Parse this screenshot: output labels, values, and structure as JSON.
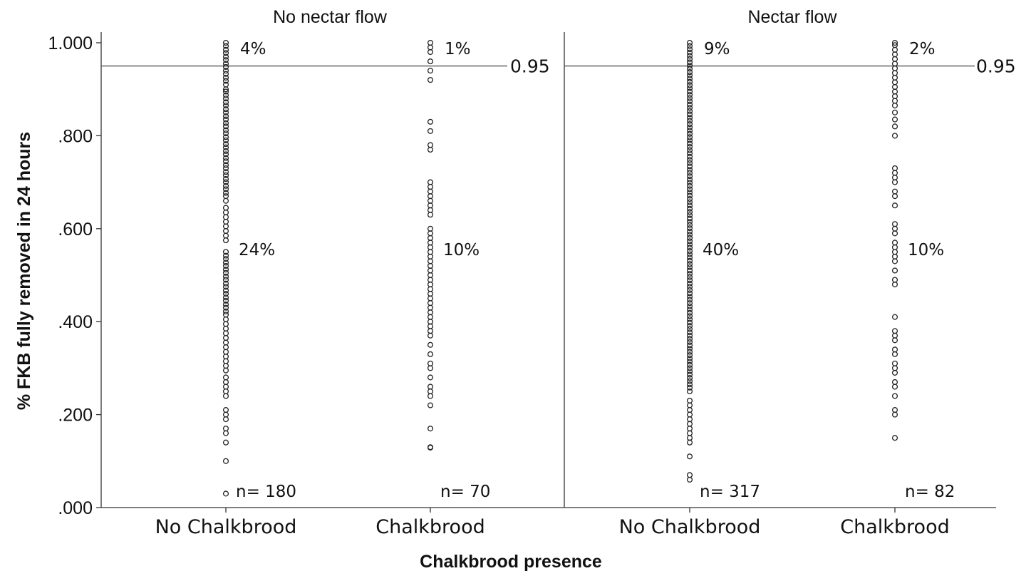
{
  "chart_data": {
    "type": "scatter",
    "ylabel": "% FKB fully removed in 24 hours",
    "xlabel": "Chalkbrood presence",
    "ylim": [
      0,
      1
    ],
    "y_ticks": [
      ".000",
      ".200",
      ".400",
      ".600",
      ".800",
      "1.000"
    ],
    "y_tick_values": [
      0,
      0.2,
      0.4,
      0.6,
      0.8,
      1.0
    ],
    "categories": [
      "No Chalkbrood",
      "Chalkbrood"
    ],
    "reference_line": {
      "value": 0.95,
      "label": "0.95"
    },
    "grid": false,
    "panels": [
      {
        "title": "No nectar flow",
        "groups": [
          {
            "category": "No Chalkbrood",
            "n_label": "n= 180",
            "pct_above": "4%",
            "pct_below": "24%",
            "values": [
              1.0,
              0.993,
              0.985,
              0.978,
              0.97,
              0.963,
              0.955,
              0.948,
              0.94,
              0.933,
              0.925,
              0.918,
              0.91,
              0.9,
              0.895,
              0.887,
              0.88,
              0.872,
              0.865,
              0.857,
              0.85,
              0.842,
              0.835,
              0.827,
              0.82,
              0.812,
              0.805,
              0.797,
              0.79,
              0.782,
              0.775,
              0.767,
              0.76,
              0.752,
              0.745,
              0.737,
              0.73,
              0.722,
              0.715,
              0.707,
              0.7,
              0.692,
              0.685,
              0.677,
              0.67,
              0.66,
              0.645,
              0.635,
              0.625,
              0.615,
              0.605,
              0.595,
              0.585,
              0.575,
              0.55,
              0.542,
              0.535,
              0.527,
              0.52,
              0.512,
              0.505,
              0.497,
              0.49,
              0.482,
              0.475,
              0.467,
              0.46,
              0.452,
              0.445,
              0.437,
              0.43,
              0.422,
              0.415,
              0.405,
              0.395,
              0.385,
              0.375,
              0.365,
              0.355,
              0.345,
              0.335,
              0.325,
              0.315,
              0.305,
              0.295,
              0.28,
              0.27,
              0.26,
              0.25,
              0.24,
              0.21,
              0.2,
              0.19,
              0.17,
              0.16,
              0.14,
              0.1,
              0.03
            ]
          },
          {
            "category": "Chalkbrood",
            "n_label": "n= 70",
            "pct_above": "1%",
            "pct_below": "10%",
            "values": [
              1.0,
              0.99,
              0.98,
              0.96,
              0.94,
              0.92,
              0.83,
              0.81,
              0.78,
              0.77,
              0.7,
              0.69,
              0.68,
              0.67,
              0.66,
              0.65,
              0.64,
              0.63,
              0.6,
              0.59,
              0.58,
              0.57,
              0.56,
              0.55,
              0.54,
              0.53,
              0.52,
              0.51,
              0.5,
              0.49,
              0.48,
              0.47,
              0.46,
              0.45,
              0.44,
              0.43,
              0.42,
              0.41,
              0.4,
              0.39,
              0.38,
              0.37,
              0.35,
              0.33,
              0.31,
              0.3,
              0.28,
              0.26,
              0.25,
              0.24,
              0.22,
              0.17,
              0.13,
              0.129
            ]
          }
        ]
      },
      {
        "title": "Nectar flow",
        "groups": [
          {
            "category": "No Chalkbrood",
            "n_label": "n= 317",
            "pct_above": "9%",
            "pct_below": "40%",
            "values": [
              1.0,
              0.993,
              0.986,
              0.979,
              0.972,
              0.965,
              0.958,
              0.951,
              0.944,
              0.937,
              0.93,
              0.923,
              0.916,
              0.909,
              0.902,
              0.895,
              0.888,
              0.881,
              0.874,
              0.867,
              0.86,
              0.853,
              0.846,
              0.839,
              0.832,
              0.825,
              0.818,
              0.811,
              0.804,
              0.797,
              0.79,
              0.783,
              0.776,
              0.769,
              0.762,
              0.755,
              0.748,
              0.741,
              0.734,
              0.727,
              0.72,
              0.713,
              0.706,
              0.699,
              0.692,
              0.685,
              0.678,
              0.671,
              0.664,
              0.657,
              0.65,
              0.643,
              0.636,
              0.629,
              0.622,
              0.615,
              0.608,
              0.601,
              0.594,
              0.587,
              0.58,
              0.573,
              0.566,
              0.559,
              0.552,
              0.545,
              0.538,
              0.531,
              0.524,
              0.517,
              0.51,
              0.503,
              0.496,
              0.489,
              0.482,
              0.475,
              0.468,
              0.461,
              0.454,
              0.447,
              0.44,
              0.433,
              0.426,
              0.419,
              0.412,
              0.405,
              0.398,
              0.391,
              0.384,
              0.377,
              0.37,
              0.363,
              0.356,
              0.349,
              0.342,
              0.335,
              0.328,
              0.321,
              0.314,
              0.307,
              0.3,
              0.293,
              0.286,
              0.279,
              0.272,
              0.265,
              0.258,
              0.25,
              0.23,
              0.22,
              0.21,
              0.2,
              0.19,
              0.18,
              0.17,
              0.16,
              0.15,
              0.14,
              0.11,
              0.07,
              0.06
            ]
          },
          {
            "category": "Chalkbrood",
            "n_label": "n= 82",
            "pct_above": "2%",
            "pct_below": "10%",
            "values": [
              1.0,
              0.995,
              0.985,
              0.975,
              0.965,
              0.955,
              0.945,
              0.935,
              0.925,
              0.915,
              0.905,
              0.895,
              0.885,
              0.875,
              0.865,
              0.85,
              0.835,
              0.82,
              0.8,
              0.73,
              0.72,
              0.71,
              0.7,
              0.68,
              0.67,
              0.65,
              0.61,
              0.6,
              0.59,
              0.57,
              0.56,
              0.55,
              0.54,
              0.53,
              0.51,
              0.49,
              0.48,
              0.41,
              0.38,
              0.37,
              0.36,
              0.34,
              0.33,
              0.31,
              0.3,
              0.29,
              0.27,
              0.26,
              0.24,
              0.21,
              0.2,
              0.15
            ]
          }
        ]
      }
    ]
  }
}
